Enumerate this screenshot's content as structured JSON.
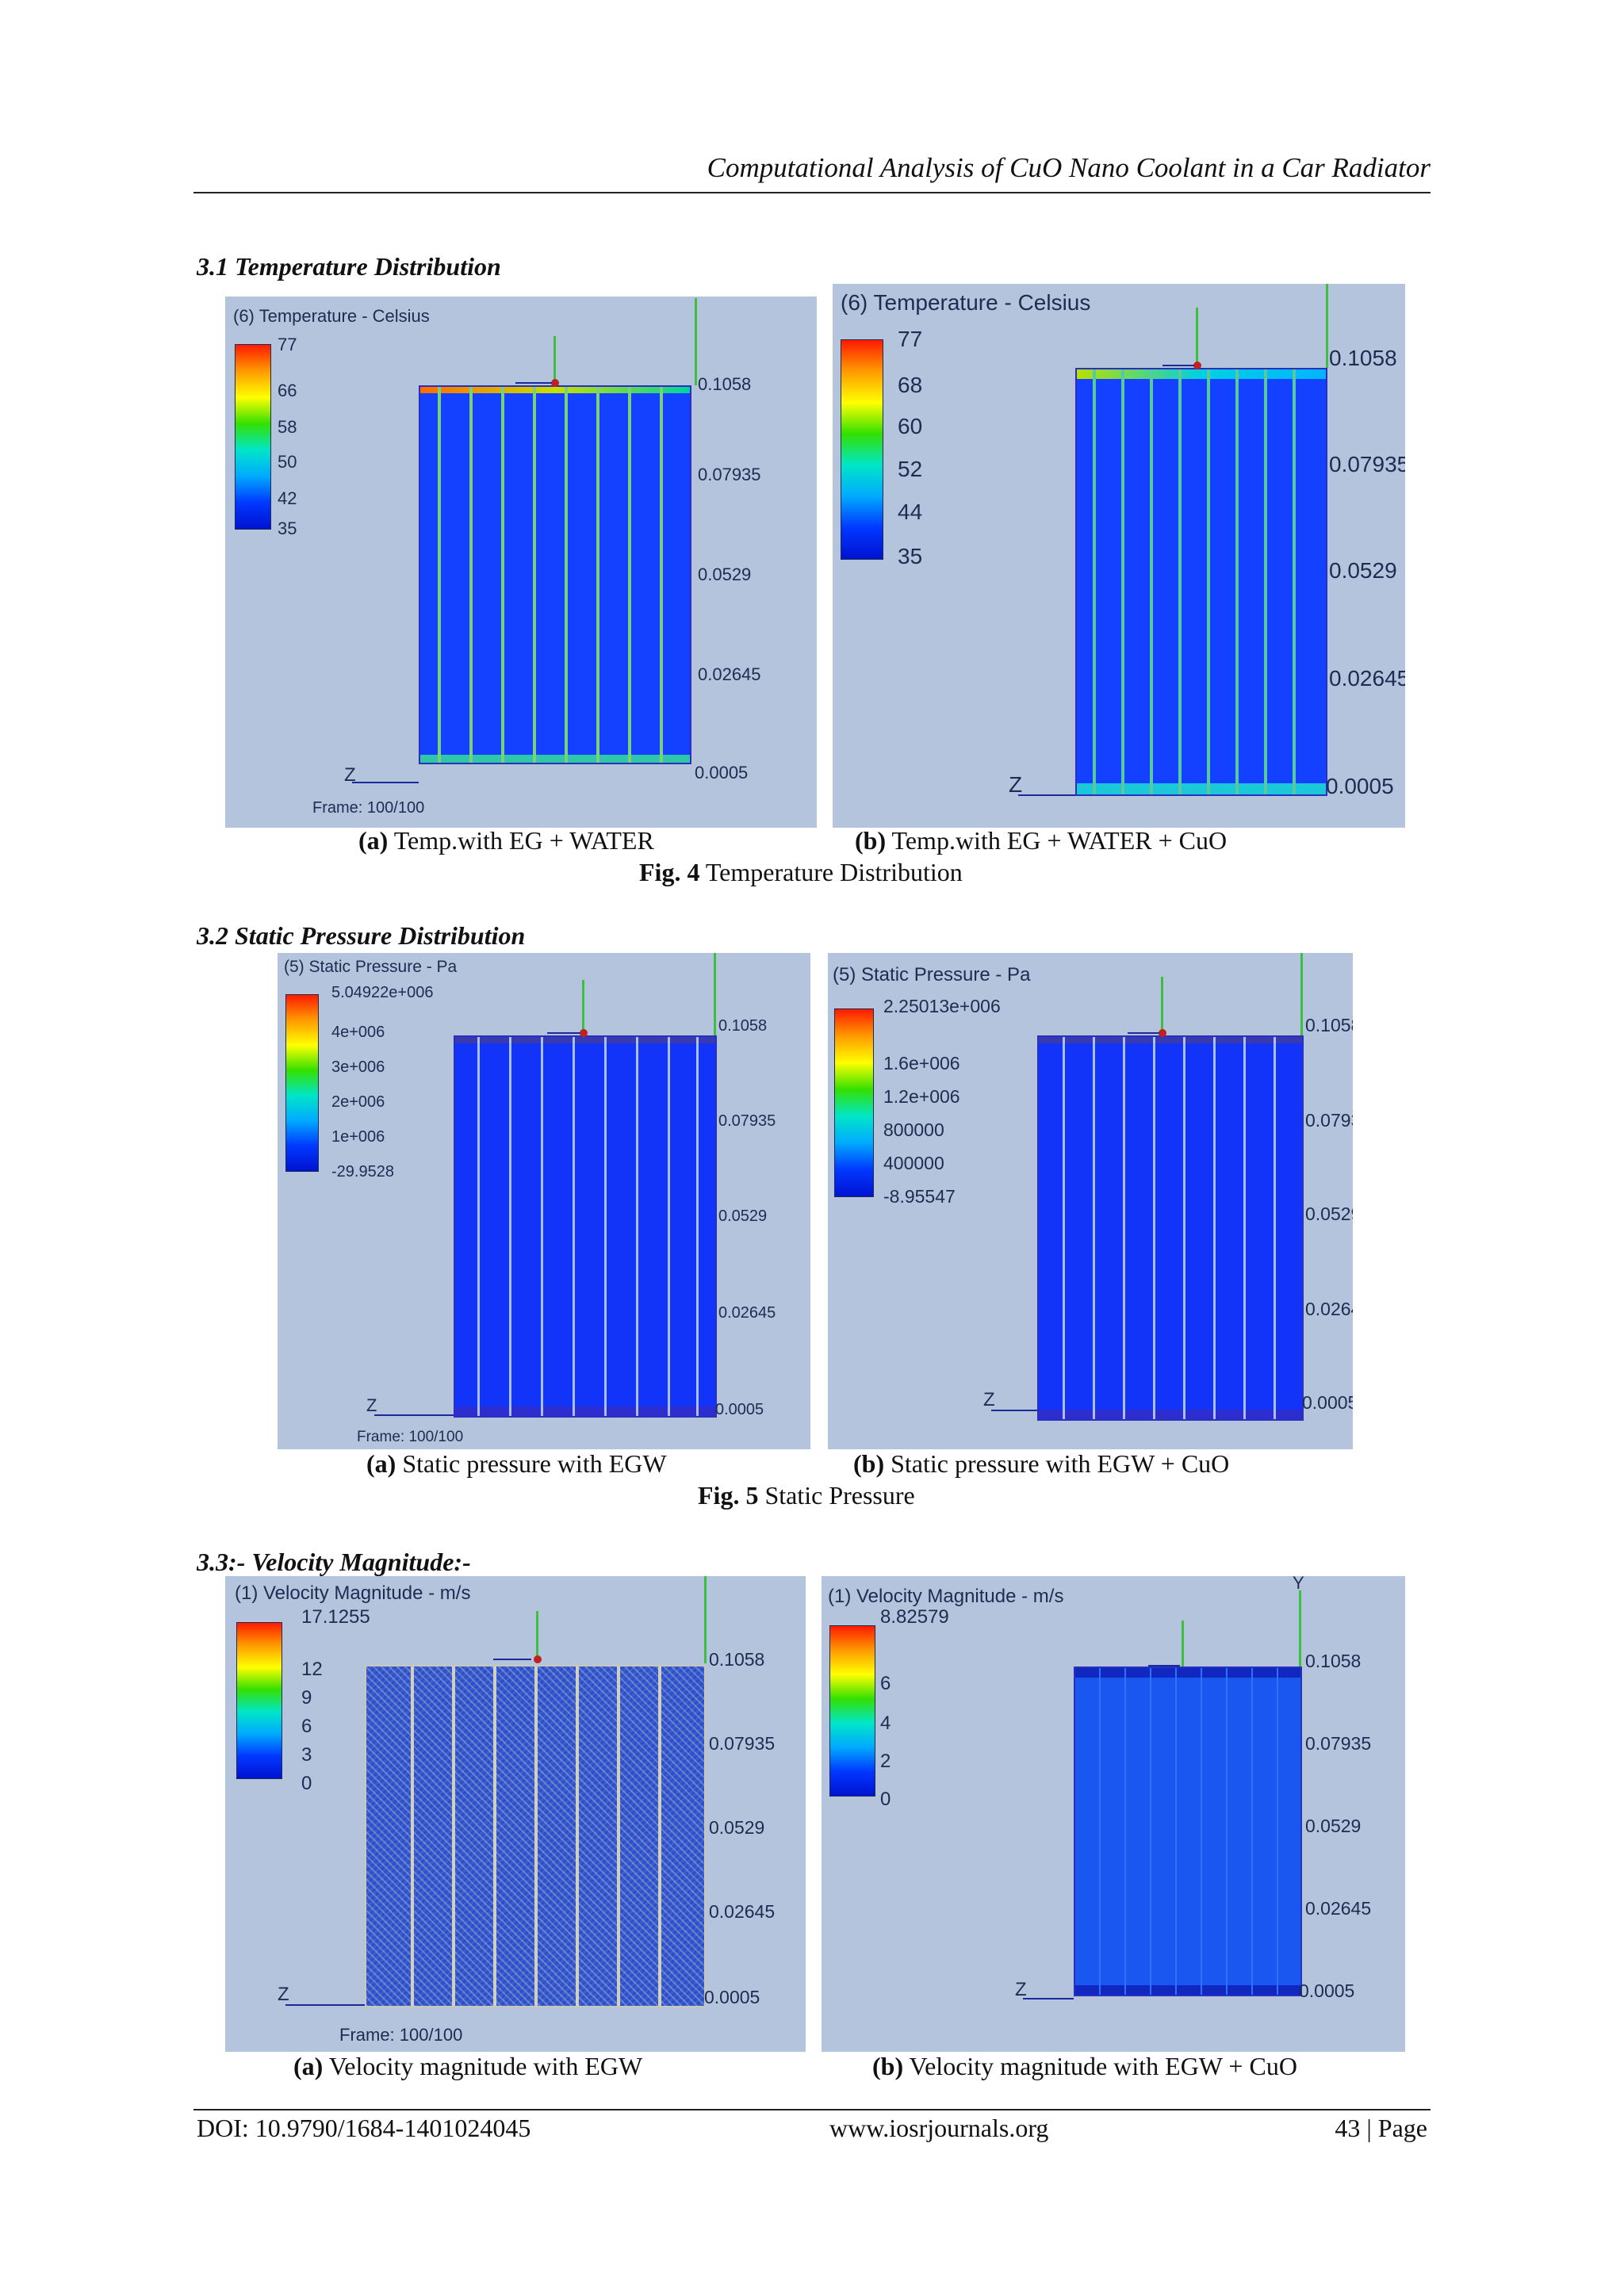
{
  "header": {
    "title": "Computational Analysis of CuO Nano Coolant in a Car Radiator"
  },
  "sections": [
    {
      "heading": "3.1  Temperature Distribution"
    },
    {
      "heading": "3.2 Static Pressure Distribution"
    },
    {
      "heading": "3.3:- Velocity Magnitude:-"
    }
  ],
  "figures": {
    "fig4": {
      "caption_num": "Fig. 4",
      "caption_text": " Temperature Distribution",
      "a": {
        "label": "(a)",
        "text": " Temp.with EG + WATER",
        "legend_title": "(6) Temperature - Celsius",
        "ticks": [
          "77",
          "66",
          "58",
          "50",
          "42",
          "35"
        ],
        "frame": "Frame: 100/100"
      },
      "b": {
        "label": "(b)",
        "text": " Temp.with EG + WATER + CuO",
        "legend_title": "(6) Temperature - Celsius",
        "ticks": [
          "77",
          "68",
          "60",
          "52",
          "44",
          "35"
        ]
      }
    },
    "fig5": {
      "caption_num": "Fig. 5",
      "caption_text": " Static Pressure",
      "a": {
        "label": "(a)",
        "text": " Static pressure with EGW",
        "legend_title": "(5) Static Pressure - Pa",
        "ticks": [
          "5.04922e+006",
          "4e+006",
          "3e+006",
          "2e+006",
          "1e+006",
          "-29.9528"
        ],
        "frame": "Frame: 100/100"
      },
      "b": {
        "label": "(b)",
        "text": " Static pressure with EGW + CuO",
        "legend_title": "(5) Static Pressure - Pa",
        "ticks": [
          "2.25013e+006",
          "1.6e+006",
          "1.2e+006",
          "800000",
          "400000",
          "-8.95547"
        ]
      }
    },
    "fig6": {
      "a": {
        "label": "(a)",
        "text": " Velocity magnitude with EGW",
        "legend_title": "(1) Velocity Magnitude - m/s",
        "ticks": [
          "17.1255",
          "12",
          "9",
          "6",
          "3",
          "0"
        ],
        "frame": "Frame: 100/100"
      },
      "b": {
        "label": "(b)",
        "text": " Velocity magnitude with EGW + CuO",
        "legend_title": "(1) Velocity Magnitude - m/s",
        "ticks": [
          "8.82579",
          "6",
          "4",
          "2",
          "0"
        ],
        "y_label": "Y"
      }
    }
  },
  "axis_values": [
    "0.1058",
    "0.07935",
    "0.0529",
    "0.02645",
    "0.0005"
  ],
  "axis_z": "Z",
  "footer": {
    "doi": "DOI: 10.9790/1684-1401024045",
    "site": "www.iosrjournals.org",
    "page": "43 | Page"
  },
  "colors": {
    "panel_bg": "#b3c4dc",
    "radiator_blue": "#1034ff",
    "legend_text": "#1e2c52"
  }
}
